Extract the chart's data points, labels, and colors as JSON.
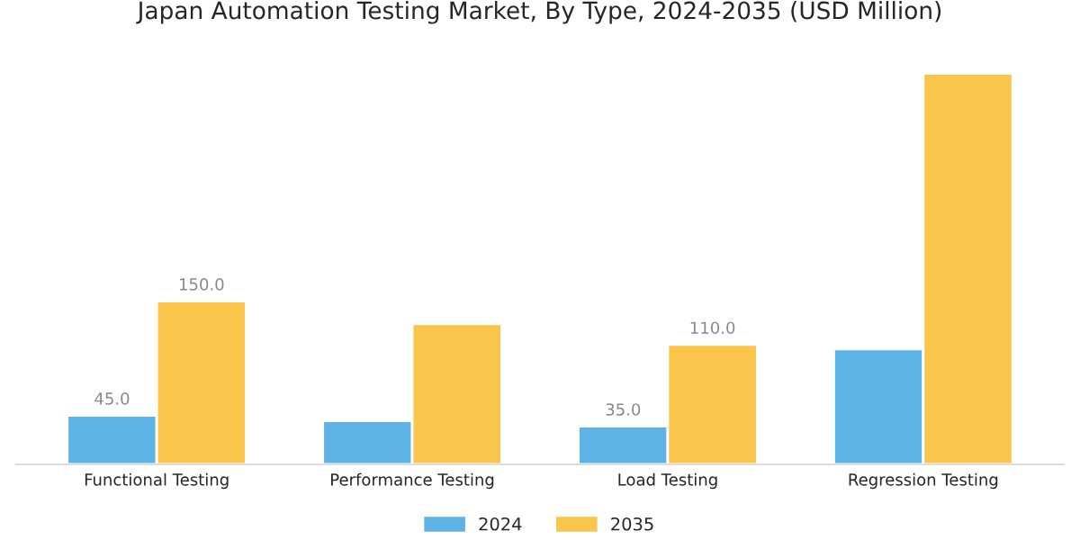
{
  "chart_data": {
    "type": "bar",
    "title": "Japan Automation Testing Market, By Type, 2024-2035 (USD Million)",
    "categories": [
      "Functional Testing",
      "Performance Testing",
      "Load Testing",
      "Regression Testing"
    ],
    "series": [
      {
        "name": "2024",
        "color": "#5db3e6",
        "values": [
          45.0,
          40,
          35.0,
          106
        ],
        "value_labels": [
          "45.0",
          null,
          "35.0",
          null
        ]
      },
      {
        "name": "2035",
        "color": "#f9c54b",
        "values": [
          150.0,
          129,
          110.0,
          359
        ],
        "value_labels": [
          "150.0",
          null,
          "110.0",
          null
        ]
      }
    ],
    "tick_labels": "x",
    "grid": false,
    "legend": "bottom"
  }
}
